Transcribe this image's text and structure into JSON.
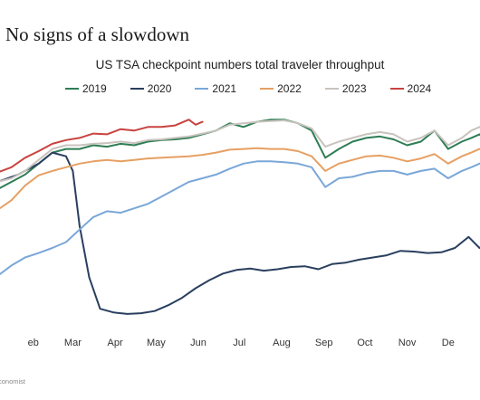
{
  "headline": "No signs of a slowdown",
  "source": "conomist",
  "chart_data": {
    "type": "line",
    "title": "US TSA checkpoint numbers total traveler throughput",
    "xlabel": "",
    "ylabel": "",
    "xlim": [
      0,
      365
    ],
    "ylim": [
      0,
      2900000
    ],
    "x_ticks": [
      {
        "label": "eb",
        "x": 31
      },
      {
        "label": "Mar",
        "x": 60
      },
      {
        "label": "Apr",
        "x": 91
      },
      {
        "label": "May",
        "x": 121
      },
      {
        "label": "Jun",
        "x": 152
      },
      {
        "label": "Jul",
        "x": 182
      },
      {
        "label": "Aug",
        "x": 213
      },
      {
        "label": "Sep",
        "x": 244
      },
      {
        "label": "Oct",
        "x": 274
      },
      {
        "label": "Nov",
        "x": 305
      },
      {
        "label": "De",
        "x": 335
      }
    ],
    "grid": false,
    "legend_position": "top",
    "series": [
      {
        "name": "2019",
        "color": "#2e7d55",
        "x": [
          5,
          15,
          25,
          35,
          45,
          55,
          65,
          75,
          85,
          95,
          105,
          115,
          125,
          135,
          145,
          155,
          165,
          175,
          185,
          195,
          205,
          215,
          225,
          235,
          245,
          255,
          265,
          275,
          285,
          295,
          305,
          315,
          325,
          335,
          345,
          352,
          358,
          365
        ],
        "y": [
          1800000,
          1900000,
          2000000,
          2150000,
          2300000,
          2350000,
          2350000,
          2400000,
          2380000,
          2420000,
          2400000,
          2450000,
          2470000,
          2480000,
          2500000,
          2550000,
          2600000,
          2700000,
          2650000,
          2720000,
          2750000,
          2750000,
          2700000,
          2600000,
          2230000,
          2350000,
          2450000,
          2500000,
          2520000,
          2480000,
          2400000,
          2450000,
          2600000,
          2350000,
          2450000,
          2500000,
          2550000,
          2400000
        ]
      },
      {
        "name": "2020",
        "color": "#2a3f5f",
        "x": [
          5,
          20,
          35,
          45,
          55,
          60,
          65,
          72,
          80,
          90,
          100,
          110,
          120,
          130,
          140,
          150,
          160,
          170,
          180,
          190,
          200,
          210,
          220,
          230,
          240,
          250,
          260,
          270,
          280,
          290,
          300,
          310,
          320,
          330,
          340,
          350,
          358,
          365
        ],
        "y": [
          1900000,
          2000000,
          2150000,
          2300000,
          2250000,
          2050000,
          1300000,
          600000,
          170000,
          120000,
          100000,
          110000,
          140000,
          220000,
          320000,
          450000,
          560000,
          650000,
          700000,
          720000,
          690000,
          710000,
          740000,
          750000,
          710000,
          780000,
          800000,
          840000,
          870000,
          900000,
          960000,
          950000,
          930000,
          940000,
          1000000,
          1150000,
          1000000,
          1100000
        ]
      },
      {
        "name": "2021",
        "color": "#7aa7d8",
        "x": [
          5,
          15,
          25,
          35,
          45,
          55,
          65,
          75,
          85,
          95,
          105,
          115,
          125,
          135,
          145,
          155,
          165,
          175,
          185,
          195,
          205,
          215,
          225,
          235,
          245,
          255,
          265,
          275,
          285,
          295,
          305,
          315,
          325,
          335,
          345,
          352,
          358,
          365
        ],
        "y": [
          620000,
          760000,
          870000,
          930000,
          1000000,
          1080000,
          1250000,
          1420000,
          1500000,
          1480000,
          1540000,
          1600000,
          1700000,
          1800000,
          1900000,
          1950000,
          2000000,
          2080000,
          2150000,
          2180000,
          2180000,
          2170000,
          2150000,
          2100000,
          1830000,
          1950000,
          1970000,
          2020000,
          2050000,
          2050000,
          2000000,
          2050000,
          2080000,
          1950000,
          2050000,
          2100000,
          2150000,
          2200000
        ]
      },
      {
        "name": "2022",
        "color": "#e6a063",
        "x": [
          5,
          15,
          25,
          35,
          45,
          55,
          65,
          75,
          85,
          95,
          105,
          115,
          125,
          135,
          145,
          155,
          165,
          175,
          185,
          195,
          205,
          215,
          225,
          235,
          245,
          255,
          265,
          275,
          285,
          295,
          305,
          315,
          325,
          335,
          345,
          352,
          358,
          365
        ],
        "y": [
          1520000,
          1650000,
          1850000,
          1990000,
          2050000,
          2100000,
          2150000,
          2180000,
          2200000,
          2180000,
          2200000,
          2220000,
          2230000,
          2240000,
          2250000,
          2270000,
          2300000,
          2340000,
          2350000,
          2360000,
          2350000,
          2350000,
          2320000,
          2250000,
          2050000,
          2150000,
          2200000,
          2250000,
          2260000,
          2230000,
          2180000,
          2220000,
          2280000,
          2150000,
          2250000,
          2300000,
          2350000,
          2300000
        ]
      },
      {
        "name": "2023",
        "color": "#c8c3bd",
        "x": [
          5,
          15,
          25,
          35,
          45,
          55,
          65,
          75,
          85,
          95,
          105,
          115,
          125,
          135,
          145,
          155,
          165,
          175,
          185,
          195,
          205,
          215,
          225,
          235,
          245,
          255,
          265,
          275,
          285,
          295,
          305,
          315,
          325,
          335,
          345,
          352,
          358,
          365
        ],
        "y": [
          1900000,
          1950000,
          2050000,
          2200000,
          2350000,
          2400000,
          2400000,
          2420000,
          2430000,
          2450000,
          2430000,
          2470000,
          2480000,
          2500000,
          2520000,
          2560000,
          2600000,
          2680000,
          2700000,
          2720000,
          2730000,
          2740000,
          2700000,
          2630000,
          2380000,
          2450000,
          2500000,
          2550000,
          2580000,
          2550000,
          2450000,
          2500000,
          2600000,
          2400000,
          2500000,
          2600000,
          2650000,
          2550000
        ]
      },
      {
        "name": "2024",
        "color": "#c8433f",
        "x": [
          5,
          15,
          25,
          35,
          45,
          55,
          65,
          75,
          85,
          95,
          105,
          115,
          125,
          135,
          145,
          150,
          155
        ],
        "y": [
          2030000,
          2100000,
          2230000,
          2320000,
          2420000,
          2470000,
          2500000,
          2560000,
          2550000,
          2620000,
          2600000,
          2650000,
          2650000,
          2670000,
          2750000,
          2680000,
          2720000
        ]
      }
    ]
  }
}
